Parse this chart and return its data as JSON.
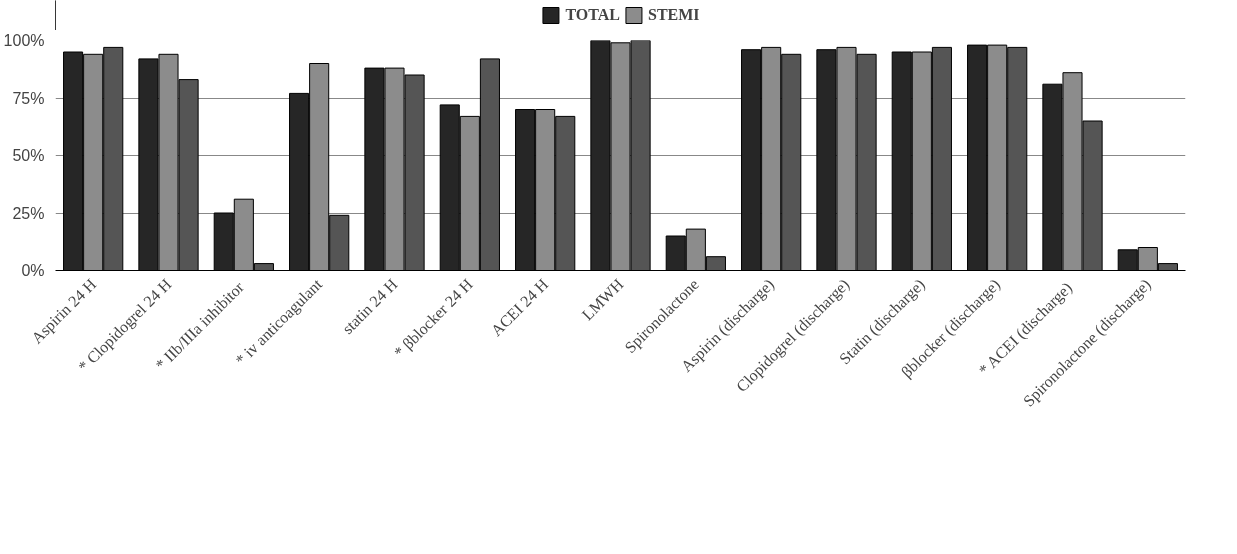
{
  "chart_data": {
    "type": "bar",
    "categories": [
      "Aspirin 24 H",
      "* Clopidogrel 24 H",
      "* IIb/IIIa  inhibitor",
      "* iv anticoagulant",
      "statin 24 H",
      "* βblocker 24 H",
      "ACEI 24 H",
      "LMWH",
      "Spironolactone",
      "Aspirin (discharge)",
      "Clopidogrel (discharge)",
      "Statin (discharge)",
      "βblocker (discharge)",
      "* ACEI  (discharge)",
      "Spironolactone (discharge)"
    ],
    "series": [
      {
        "name": "TOTAL",
        "color": "#262626",
        "values": [
          95,
          92,
          25,
          77,
          88,
          72,
          70,
          100,
          15,
          96,
          96,
          95,
          98,
          81,
          9
        ]
      },
      {
        "name": "STEMI",
        "color": "#8c8c8c",
        "values": [
          94,
          94,
          31,
          90,
          88,
          67,
          70,
          99,
          18,
          97,
          97,
          95,
          98,
          86,
          10
        ]
      },
      {
        "color": "#555555",
        "values": [
          97,
          83,
          3,
          24,
          85,
          92,
          67,
          100,
          6,
          94,
          94,
          97,
          97,
          65,
          3
        ]
      }
    ],
    "ylim": [
      0,
      100
    ],
    "yticks": [
      {
        "value": 0,
        "label": "0%"
      },
      {
        "value": 25,
        "label": "25%"
      },
      {
        "value": 50,
        "label": "50%"
      },
      {
        "value": 75,
        "label": "75%"
      },
      {
        "value": 100,
        "label": "100%"
      }
    ],
    "grid": "y",
    "legend": "top"
  }
}
